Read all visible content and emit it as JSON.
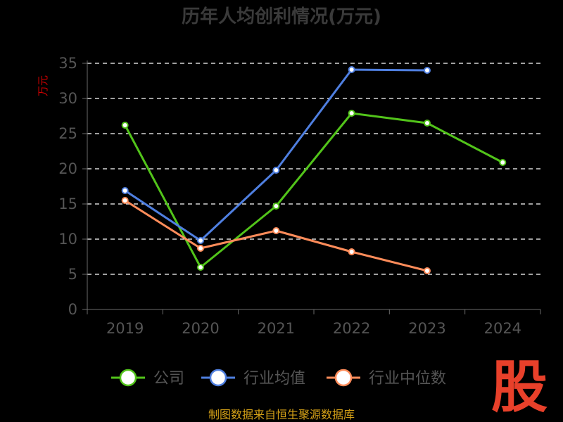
{
  "chart_data": {
    "type": "line",
    "title": "历年人均创利情况(万元)",
    "ylabel": "万元",
    "xlabel": "",
    "categories": [
      "2019",
      "2020",
      "2021",
      "2022",
      "2023",
      "2024"
    ],
    "ylim": [
      0,
      35
    ],
    "yticks": [
      0,
      5,
      10,
      15,
      20,
      25,
      30,
      35
    ],
    "grid": true,
    "legend_position": "bottom",
    "series": [
      {
        "name": "公司",
        "color": "#52c41a",
        "values": [
          26.2,
          6.0,
          14.7,
          27.9,
          26.5,
          20.9
        ]
      },
      {
        "name": "行业均值",
        "color": "#4f7fe0",
        "values": [
          16.9,
          9.8,
          19.8,
          34.1,
          34.0,
          null
        ]
      },
      {
        "name": "行业中位数",
        "color": "#ff8c5a",
        "values": [
          15.5,
          8.7,
          11.2,
          8.2,
          5.5,
          null
        ]
      }
    ]
  },
  "footer": {
    "source": "制图数据来自恒生聚源数据库"
  },
  "logo": {
    "text": "股",
    "color": "#e8402a"
  },
  "colors": {
    "title": "#3a3a3a",
    "axis_tick": "#555555",
    "axis_line": "#6a6a6a",
    "ylabel": "#cc0000",
    "grid": "#ffffff",
    "source": "#d4a017"
  }
}
